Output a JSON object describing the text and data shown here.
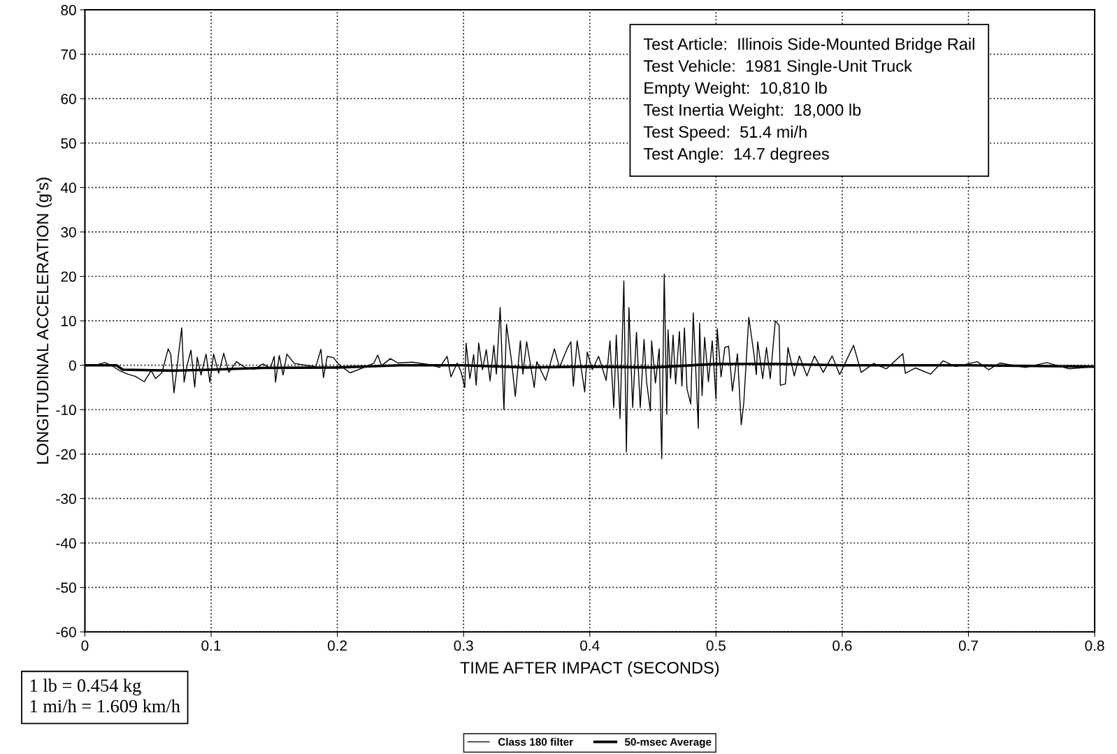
{
  "chart_data": {
    "type": "line",
    "xlabel": "TIME AFTER IMPACT (SECONDS)",
    "ylabel": "LONGITUDINAL ACCELERATION (g's)",
    "xlim": [
      0,
      0.8
    ],
    "xticks": [
      0,
      0.1,
      0.2,
      0.3,
      0.4,
      0.5,
      0.6,
      0.7,
      0.8
    ],
    "ylim": [
      -60,
      80
    ],
    "yticks": [
      -60,
      -50,
      -40,
      -30,
      -20,
      -10,
      0,
      10,
      20,
      30,
      40,
      50,
      60,
      70,
      80
    ],
    "grid": true,
    "legend": "bottom",
    "series": [
      {
        "name": "Class 180 filter",
        "color": "#000000",
        "line_style": "solid",
        "x": [
          0,
          0.008,
          0.016,
          0.022,
          0.028,
          0.034,
          0.04,
          0.047,
          0.0525,
          0.056,
          0.061,
          0.066,
          0.068,
          0.0706,
          0.0767,
          0.0786,
          0.081,
          0.084,
          0.087,
          0.089,
          0.092,
          0.096,
          0.099,
          0.102,
          0.106,
          0.11,
          0.114,
          0.12,
          0.127,
          0.134,
          0.141,
          0.147,
          0.15,
          0.151,
          0.154,
          0.157,
          0.16,
          0.166,
          0.175,
          0.183,
          0.187,
          0.189,
          0.192,
          0.197,
          0.201,
          0.21,
          0.22,
          0.229,
          0.232,
          0.235,
          0.242,
          0.248,
          0.259,
          0.274,
          0.281,
          0.287,
          0.29,
          0.295,
          0.298,
          0.301,
          0.302,
          0.305,
          0.308,
          0.31,
          0.312,
          0.315,
          0.318,
          0.321,
          0.324,
          0.326,
          0.329,
          0.332,
          0.334,
          0.338,
          0.341,
          0.345,
          0.347,
          0.35,
          0.356,
          0.358,
          0.365,
          0.372,
          0.376,
          0.382,
          0.385,
          0.387,
          0.39,
          0.396,
          0.398,
          0.402,
          0.407,
          0.413,
          0.416,
          0.419,
          0.421,
          0.424,
          0.427,
          0.429,
          0.431,
          0.434,
          0.437,
          0.44,
          0.443,
          0.445,
          0.448,
          0.449,
          0.452,
          0.455,
          0.457,
          0.459,
          0.461,
          0.462,
          0.464,
          0.466,
          0.468,
          0.471,
          0.473,
          0.475,
          0.477,
          0.48,
          0.482,
          0.486,
          0.487,
          0.489,
          0.491,
          0.494,
          0.497,
          0.5,
          0.501,
          0.504,
          0.507,
          0.51,
          0.513,
          0.517,
          0.52,
          0.522,
          0.526,
          0.53,
          0.532,
          0.533,
          0.537,
          0.54,
          0.543,
          0.547,
          0.55,
          0.551,
          0.555,
          0.557,
          0.562,
          0.566,
          0.572,
          0.578,
          0.585,
          0.592,
          0.598,
          0.604,
          0.609,
          0.615,
          0.625,
          0.635,
          0.648,
          0.65,
          0.658,
          0.67,
          0.68,
          0.69,
          0.707,
          0.716,
          0.725,
          0.745,
          0.762,
          0.78,
          0.8
        ],
        "values": [
          0,
          0,
          0.6,
          -0.2,
          -1.3,
          -2,
          -2.5,
          -3.7,
          -1.2,
          -3,
          -1.7,
          3.7,
          2.5,
          -6.2,
          8.4,
          -3.8,
          0,
          3.4,
          -4.9,
          1.8,
          -2.2,
          2.5,
          -3.8,
          2.5,
          -1.8,
          2.7,
          -1.6,
          0.8,
          -0.5,
          -0.9,
          0.3,
          -0.6,
          2,
          -3.8,
          2.2,
          -2.2,
          2.5,
          0.4,
          0,
          -0.3,
          3.6,
          -2.8,
          2,
          1.7,
          0.2,
          -1.7,
          -0.6,
          0.5,
          2.3,
          -0.1,
          1.5,
          0.5,
          0.7,
          0.1,
          -0.5,
          2,
          -2.6,
          0.5,
          -1.5,
          -5,
          5,
          -3,
          2.4,
          -4.5,
          5,
          -1,
          3.5,
          -3.5,
          4.5,
          -2,
          13,
          -10,
          9.2,
          1,
          -7,
          5.5,
          -2,
          5.3,
          -5,
          0.8,
          -3.4,
          3.7,
          -0.5,
          3.7,
          5.3,
          -4.7,
          5.5,
          -6,
          3,
          -1,
          2,
          -3.4,
          5.5,
          -9.5,
          6.8,
          -12,
          19,
          -19.5,
          13,
          -9.5,
          7.4,
          -9.5,
          5.8,
          -3.7,
          -10.3,
          5.5,
          -4,
          3.7,
          -21,
          20.5,
          -11,
          8,
          -3,
          6.8,
          -4.2,
          7.6,
          -4.7,
          8.4,
          -5.3,
          -8.7,
          11.8,
          -14.2,
          9.5,
          -6.8,
          6.3,
          -3.7,
          5.5,
          -7.6,
          8.2,
          -2.6,
          4,
          4.3,
          -5.8,
          2.6,
          -13.4,
          -8.5,
          10.8,
          2.6,
          -2.1,
          5.3,
          -3,
          4,
          -3,
          10,
          9,
          -4.5,
          -4.2,
          4,
          -2.4,
          2.1,
          -2.4,
          2.1,
          -1.6,
          2.1,
          -2.1,
          1.5,
          4.5,
          -1.6,
          0.4,
          -0.8,
          2.6,
          -1.8,
          -0.6,
          -2,
          1,
          -0.3,
          0.8,
          -1,
          0.5,
          -0.5,
          0.6,
          -0.8,
          -0.3
        ]
      },
      {
        "name": "50-msec Average",
        "color": "#000000",
        "line_style": "solid",
        "x": [
          0,
          0.025,
          0.03,
          0.07,
          0.1,
          0.14,
          0.2,
          0.25,
          0.3,
          0.35,
          0.4,
          0.45,
          0.5,
          0.55,
          0.6,
          0.7,
          0.8
        ],
        "values": [
          0,
          0,
          -1,
          -1.2,
          -1,
          -0.6,
          -0.5,
          0,
          0,
          -0.5,
          -0.3,
          -0.5,
          0.3,
          0.3,
          0,
          0,
          -0.3
        ]
      }
    ],
    "annotations": [
      "Test Article:  Illinois Side-Mounted Bridge Rail\nTest Vehicle:  1981 Single-Unit Truck\nEmpty Weight:  10,810 lb\nTest Inertia Weight:  18,000 lb\nTest Speed:  51.4 mi/h\nTest Angle:  14.7 degrees",
      "1 lb = 0.454 kg\n1 mi/h = 1.609 km/h"
    ]
  }
}
